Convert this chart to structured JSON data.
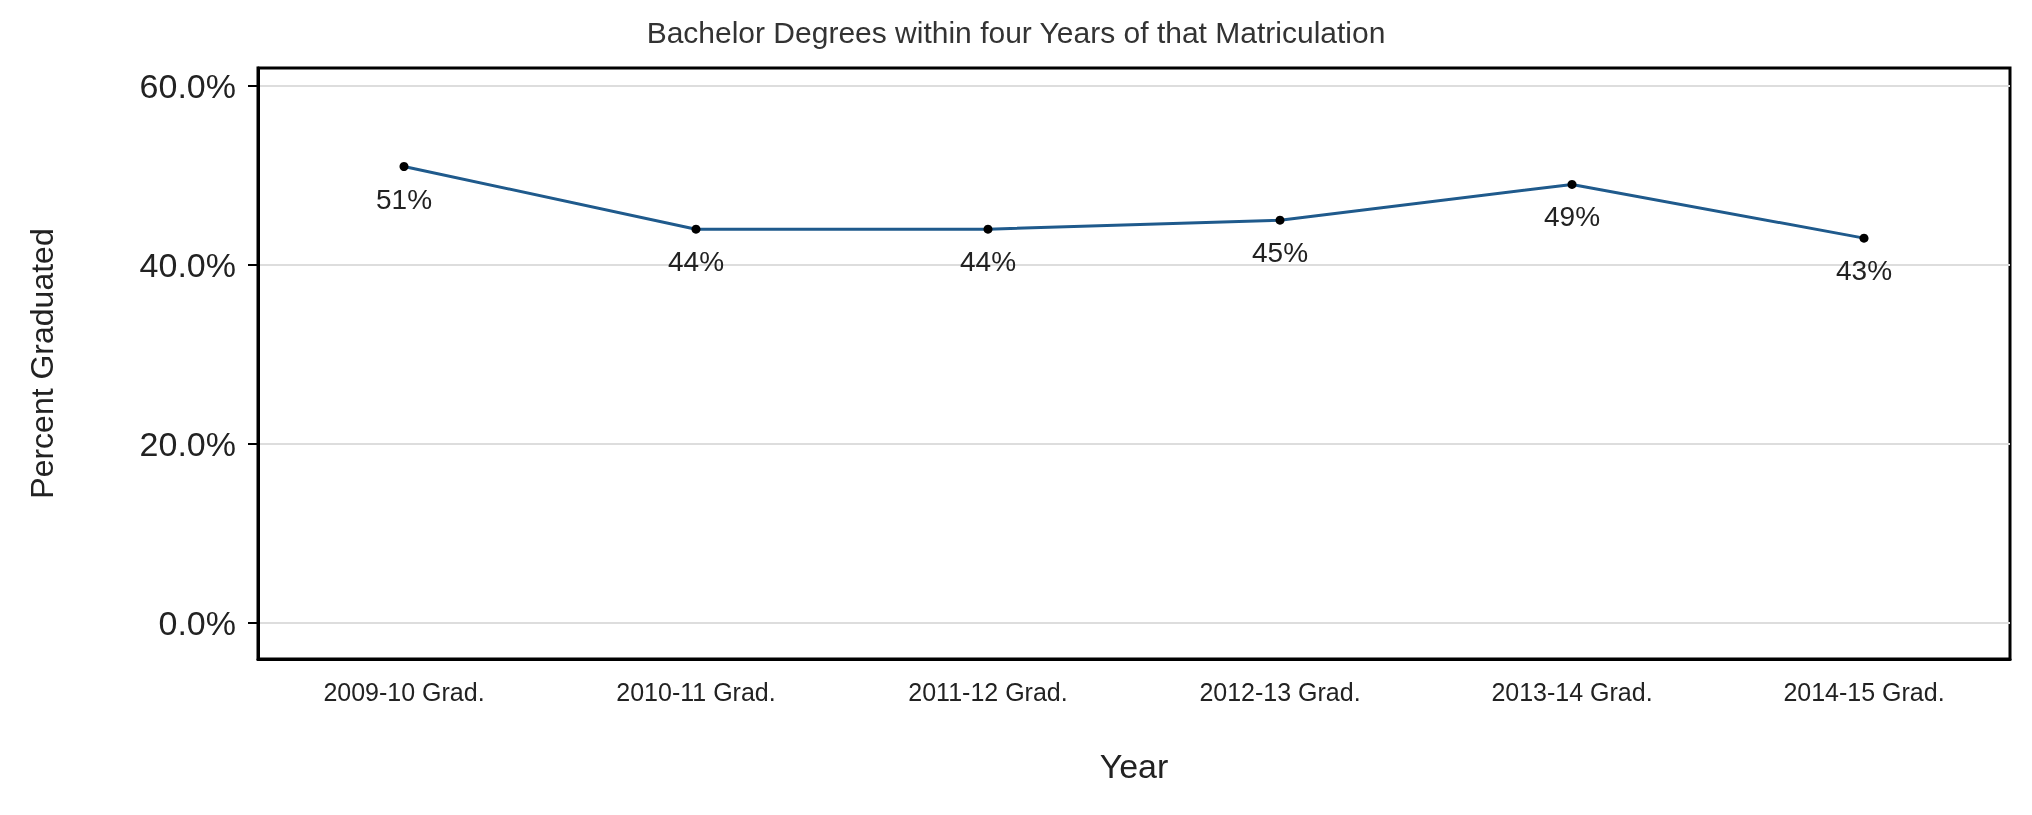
{
  "chart_data": {
    "type": "line",
    "title": "Bachelor Degrees within four Years of that Matriculation",
    "xlabel": "Year",
    "ylabel": "Percent Graduated",
    "categories": [
      "2009-10 Grad.",
      "2010-11 Grad.",
      "2011-12 Grad.",
      "2012-13 Grad.",
      "2013-14 Grad.",
      "2014-15 Grad."
    ],
    "series": [
      {
        "color": "#1f5a8c",
        "values": [
          51,
          44,
          44,
          45,
          49,
          43
        ],
        "value_labels": [
          "51%",
          "44%",
          "44%",
          "45%",
          "49%",
          "43%"
        ]
      }
    ],
    "ylim": [
      -4,
      62
    ],
    "yticks": [
      {
        "value": 0,
        "label": "0.0%"
      },
      {
        "value": 20,
        "label": "20.0%"
      },
      {
        "value": 40,
        "label": "40.0%"
      },
      {
        "value": 60,
        "label": "60.0%"
      }
    ],
    "grid": "y",
    "marker": "circle",
    "line_style": "solid"
  }
}
